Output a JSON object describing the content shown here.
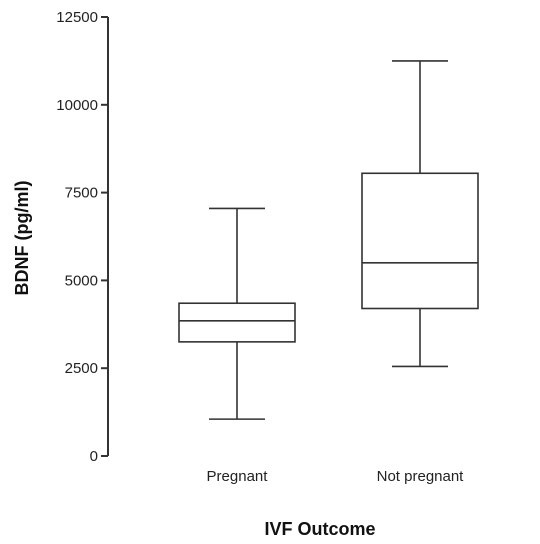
{
  "chart_data": {
    "type": "boxplot",
    "xlabel": "IVF Outcome",
    "ylabel": "BDNF (pg/ml)",
    "ylim": [
      0,
      12500
    ],
    "yticks": [
      0,
      2500,
      5000,
      7500,
      10000,
      12500
    ],
    "grid": false,
    "categories": [
      "Pregnant",
      "Not pregnant"
    ],
    "boxes": [
      {
        "category": "Pregnant",
        "min": 1050,
        "q1": 3250,
        "median": 3850,
        "q3": 4350,
        "max": 7050
      },
      {
        "category": "Not pregnant",
        "min": 2550,
        "q1": 4200,
        "median": 5500,
        "q3": 8050,
        "max": 11250
      }
    ]
  }
}
